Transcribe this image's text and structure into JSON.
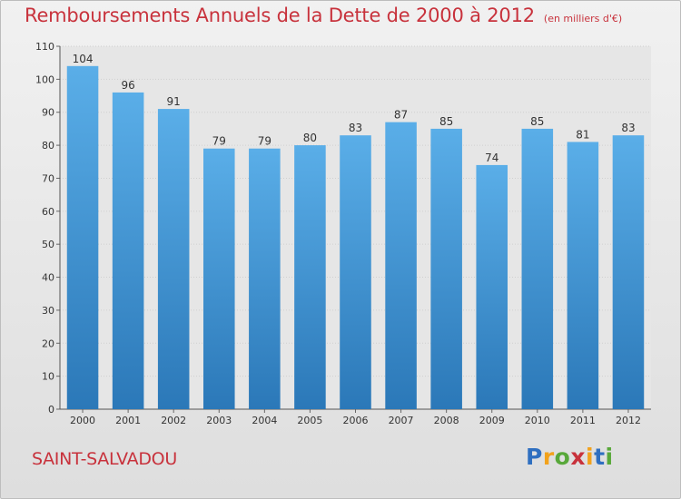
{
  "header": {
    "title": "Remboursements Annuels de la Dette de 2000 à 2012",
    "subtitle": "(en milliers d'€)"
  },
  "footer": {
    "commune": "SAINT-SALVADOU",
    "logo_letters": [
      "P",
      "r",
      "o",
      "x",
      "i",
      "t",
      "i"
    ],
    "logo_colors": [
      "#2f6fc0",
      "#f2a21c",
      "#58a83a",
      "#c8323c",
      "#f2a21c",
      "#2f6fc0",
      "#58a83a"
    ]
  },
  "chart_data": {
    "type": "bar",
    "title": "Remboursements Annuels de la Dette de 2000 à 2012",
    "subtitle": "(en milliers d'€)",
    "categories": [
      "2000",
      "2001",
      "2002",
      "2003",
      "2004",
      "2005",
      "2006",
      "2007",
      "2008",
      "2009",
      "2010",
      "2011",
      "2012"
    ],
    "values": [
      104,
      96,
      91,
      79,
      79,
      80,
      83,
      87,
      85,
      74,
      85,
      81,
      83
    ],
    "xlabel": "",
    "ylabel": "",
    "ylim": [
      0,
      110
    ],
    "yticks": [
      0,
      10,
      20,
      30,
      40,
      50,
      60,
      70,
      80,
      90,
      100,
      110
    ],
    "grid": true,
    "bar_color_top": "#5aaee8",
    "bar_color_bottom": "#2b78b8"
  }
}
